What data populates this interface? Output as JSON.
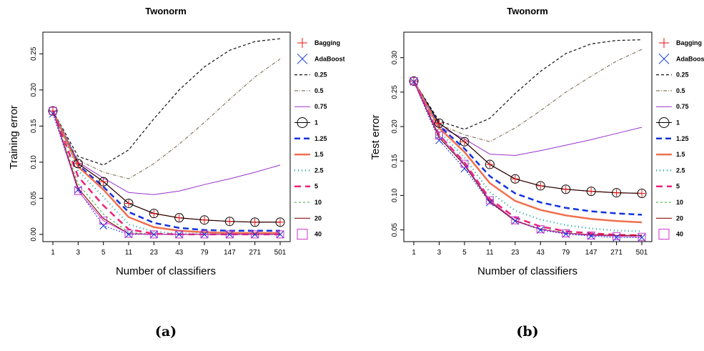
{
  "chart_data": [
    {
      "type": "line",
      "panel_label": "(a)",
      "title": "Twonorm",
      "xlabel": "Number of classifiers",
      "ylabel": "Training error",
      "x": [
        1,
        3,
        5,
        11,
        23,
        43,
        79,
        147,
        271,
        501
      ],
      "x_tick_labels": [
        "1",
        "3",
        "5",
        "11",
        "23",
        "43",
        "79",
        "147",
        "271",
        "501"
      ],
      "ylim": [
        -0.01,
        0.28
      ],
      "yticks": [
        0.0,
        0.05,
        0.1,
        0.15,
        0.2,
        0.25
      ],
      "y_tick_labels": [
        "0.00",
        "0.05",
        "0.10",
        "0.15",
        "0.20",
        "0.25"
      ],
      "legend_position": "right",
      "series": [
        {
          "name": "Bagging",
          "color": "#ee1111",
          "dash": "",
          "width": 1.2,
          "marker": "plus",
          "values": [
            0.171,
            0.098,
            0.073,
            0.043,
            0.029,
            0.023,
            0.02,
            0.018,
            0.017,
            0.017
          ]
        },
        {
          "name": "AdaBoost",
          "color": "#1133dd",
          "dash": "2,2",
          "width": 1,
          "marker": "cross",
          "values": [
            0.167,
            0.062,
            0.012,
            0.0,
            0.0,
            0.0,
            0.0,
            0.0,
            0.0,
            0.0
          ]
        },
        {
          "name": "0.25",
          "color": "#111111",
          "dash": "4,3",
          "width": 1.2,
          "marker": "",
          "values": [
            0.171,
            0.108,
            0.096,
            0.117,
            0.16,
            0.2,
            0.232,
            0.255,
            0.267,
            0.271
          ]
        },
        {
          "name": "0.5",
          "color": "#8a7a66",
          "dash": "5,2,1,2",
          "width": 1.2,
          "marker": "",
          "values": [
            0.171,
            0.103,
            0.086,
            0.077,
            0.098,
            0.125,
            0.155,
            0.187,
            0.218,
            0.243
          ]
        },
        {
          "name": "0.75",
          "color": "#9933cc",
          "dash": "",
          "width": 1,
          "marker": "",
          "values": [
            0.171,
            0.1,
            0.078,
            0.058,
            0.055,
            0.06,
            0.069,
            0.077,
            0.086,
            0.096
          ]
        },
        {
          "name": "1",
          "color": "#000000",
          "dash": "",
          "width": 1,
          "marker": "circle",
          "values": [
            0.171,
            0.098,
            0.073,
            0.043,
            0.029,
            0.023,
            0.02,
            0.018,
            0.017,
            0.017
          ]
        },
        {
          "name": "1.25",
          "color": "#1133dd",
          "dash": "8,5",
          "width": 2.5,
          "marker": "",
          "values": [
            0.171,
            0.096,
            0.066,
            0.031,
            0.016,
            0.009,
            0.006,
            0.005,
            0.005,
            0.005
          ]
        },
        {
          "name": "1.5",
          "color": "#f07050",
          "dash": "",
          "width": 2.5,
          "marker": "",
          "values": [
            0.171,
            0.094,
            0.062,
            0.024,
            0.01,
            0.005,
            0.003,
            0.002,
            0.002,
            0.002
          ]
        },
        {
          "name": "2.5",
          "color": "#22aa99",
          "dash": "1,4",
          "width": 2.5,
          "marker": "",
          "values": [
            0.171,
            0.088,
            0.052,
            0.014,
            0.004,
            0.001,
            0.001,
            0.0,
            0.0,
            0.0
          ]
        },
        {
          "name": "5",
          "color": "#ee2277",
          "dash": "9,6",
          "width": 2.5,
          "marker": "",
          "values": [
            0.171,
            0.08,
            0.04,
            0.007,
            0.001,
            0.0,
            0.0,
            0.0,
            0.0,
            0.0
          ]
        },
        {
          "name": "10",
          "color": "#33aa33",
          "dash": "3,3",
          "width": 1,
          "marker": "",
          "values": [
            0.171,
            0.07,
            0.028,
            0.003,
            0.0,
            0.0,
            0.0,
            0.0,
            0.0,
            0.0
          ]
        },
        {
          "name": "20",
          "color": "#881111",
          "dash": "",
          "width": 1.2,
          "marker": "",
          "values": [
            0.171,
            0.064,
            0.022,
            0.001,
            0.0,
            0.0,
            0.0,
            0.0,
            0.0,
            0.0
          ]
        },
        {
          "name": "40",
          "color": "#cc33cc",
          "dash": "",
          "width": 1,
          "marker": "square",
          "values": [
            0.171,
            0.06,
            0.019,
            0.001,
            0.0,
            0.0,
            0.0,
            0.0,
            0.0,
            0.0
          ]
        }
      ]
    },
    {
      "type": "line",
      "panel_label": "(b)",
      "title": "Twonorm",
      "xlabel": "Number of classifiers",
      "ylabel": "Test error",
      "x": [
        1,
        3,
        5,
        11,
        23,
        43,
        79,
        147,
        271,
        501
      ],
      "x_tick_labels": [
        "1",
        "3",
        "5",
        "11",
        "23",
        "43",
        "79",
        "147",
        "271",
        "501"
      ],
      "ylim": [
        0.033,
        0.337
      ],
      "yticks": [
        0.05,
        0.1,
        0.15,
        0.2,
        0.25,
        0.3
      ],
      "y_tick_labels": [
        "0.05",
        "0.10",
        "0.15",
        "0.20",
        "0.25",
        "0.30"
      ],
      "legend_position": "right",
      "series": [
        {
          "name": "Bagging",
          "color": "#ee1111",
          "dash": "",
          "width": 1.2,
          "marker": "plus",
          "values": [
            0.266,
            0.205,
            0.178,
            0.145,
            0.124,
            0.114,
            0.109,
            0.106,
            0.104,
            0.103
          ]
        },
        {
          "name": "AdaBoost",
          "color": "#1133dd",
          "dash": "2,2",
          "width": 1,
          "marker": "cross",
          "values": [
            0.265,
            0.18,
            0.139,
            0.09,
            0.063,
            0.05,
            0.044,
            0.041,
            0.039,
            0.039
          ]
        },
        {
          "name": "0.25",
          "color": "#111111",
          "dash": "4,3",
          "width": 1.2,
          "marker": "",
          "values": [
            0.266,
            0.208,
            0.196,
            0.212,
            0.248,
            0.28,
            0.306,
            0.32,
            0.325,
            0.326
          ]
        },
        {
          "name": "0.5",
          "color": "#8a7a66",
          "dash": "5,2,1,2",
          "width": 1.2,
          "marker": "",
          "values": [
            0.266,
            0.203,
            0.188,
            0.178,
            0.198,
            0.223,
            0.25,
            0.273,
            0.295,
            0.312
          ]
        },
        {
          "name": "0.75",
          "color": "#9933cc",
          "dash": "",
          "width": 1,
          "marker": "",
          "values": [
            0.266,
            0.2,
            0.182,
            0.16,
            0.158,
            0.165,
            0.173,
            0.181,
            0.19,
            0.199
          ]
        },
        {
          "name": "1",
          "color": "#000000",
          "dash": "",
          "width": 1,
          "marker": "circle",
          "values": [
            0.266,
            0.205,
            0.178,
            0.145,
            0.124,
            0.114,
            0.109,
            0.106,
            0.104,
            0.103
          ]
        },
        {
          "name": "1.25",
          "color": "#1133dd",
          "dash": "8,5",
          "width": 2.5,
          "marker": "",
          "values": [
            0.266,
            0.201,
            0.168,
            0.128,
            0.103,
            0.09,
            0.082,
            0.077,
            0.074,
            0.072
          ]
        },
        {
          "name": "1.5",
          "color": "#f07050",
          "dash": "",
          "width": 2.5,
          "marker": "",
          "values": [
            0.266,
            0.198,
            0.163,
            0.118,
            0.092,
            0.079,
            0.071,
            0.066,
            0.063,
            0.061
          ]
        },
        {
          "name": "2.5",
          "color": "#22aa99",
          "dash": "1,4",
          "width": 2.5,
          "marker": "",
          "values": [
            0.266,
            0.193,
            0.155,
            0.105,
            0.078,
            0.065,
            0.057,
            0.052,
            0.049,
            0.048
          ]
        },
        {
          "name": "5",
          "color": "#ee2277",
          "dash": "9,6",
          "width": 2.5,
          "marker": "",
          "values": [
            0.266,
            0.188,
            0.148,
            0.095,
            0.068,
            0.055,
            0.048,
            0.045,
            0.043,
            0.042
          ]
        },
        {
          "name": "10",
          "color": "#33aa33",
          "dash": "3,3",
          "width": 1,
          "marker": "",
          "values": [
            0.266,
            0.185,
            0.145,
            0.092,
            0.064,
            0.052,
            0.046,
            0.043,
            0.041,
            0.04
          ]
        },
        {
          "name": "20",
          "color": "#881111",
          "dash": "",
          "width": 1.2,
          "marker": "",
          "values": [
            0.266,
            0.184,
            0.144,
            0.091,
            0.063,
            0.051,
            0.045,
            0.043,
            0.042,
            0.042
          ]
        },
        {
          "name": "40",
          "color": "#cc33cc",
          "dash": "",
          "width": 1,
          "marker": "square",
          "values": [
            0.266,
            0.187,
            0.146,
            0.093,
            0.064,
            0.051,
            0.045,
            0.042,
            0.041,
            0.04
          ]
        }
      ]
    }
  ]
}
